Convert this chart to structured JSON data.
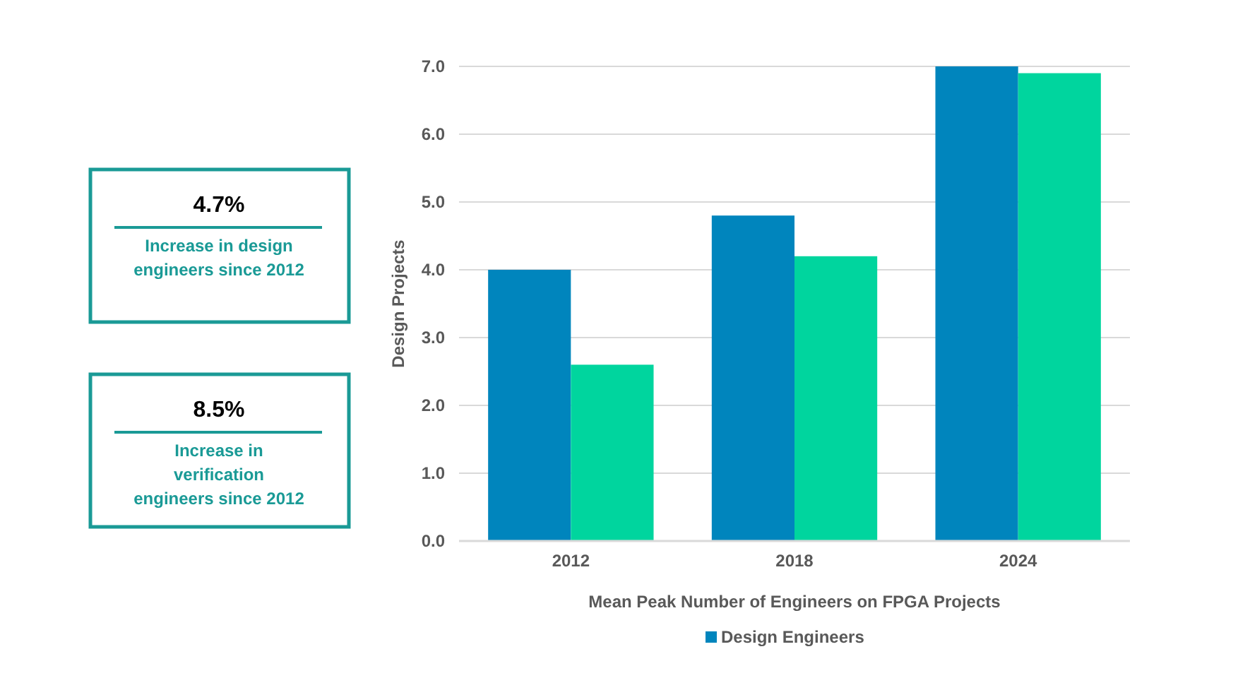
{
  "chart_data": {
    "type": "bar",
    "xlabel": "Mean Peak Number of Engineers on FPGA Projects",
    "ylabel": "Design Projects",
    "categories": [
      "2012",
      "2018",
      "2024"
    ],
    "series": [
      {
        "name": "Design Engineers",
        "color": "#0085bd",
        "values": [
          4.0,
          4.8,
          7.0
        ]
      },
      {
        "color": "#00d59e",
        "values": [
          2.6,
          4.2,
          6.9
        ]
      }
    ],
    "ylim": [
      0,
      7
    ],
    "yticks": [
      {
        "value": 0,
        "label": "0.0"
      },
      {
        "value": 1,
        "label": "1.0"
      },
      {
        "value": 2,
        "label": "2.0"
      },
      {
        "value": 3,
        "label": "3.0"
      },
      {
        "value": 4,
        "label": "4.0"
      },
      {
        "value": 5,
        "label": "5.0"
      },
      {
        "value": 6,
        "label": "6.0"
      },
      {
        "value": 7,
        "label": "7.0"
      }
    ],
    "grid": "y",
    "legend": "bottom",
    "annotations": [
      "4.7%",
      "Increase in design engineers since 2012",
      "8.5%",
      "Increase in verification engineers since 2012"
    ]
  }
}
